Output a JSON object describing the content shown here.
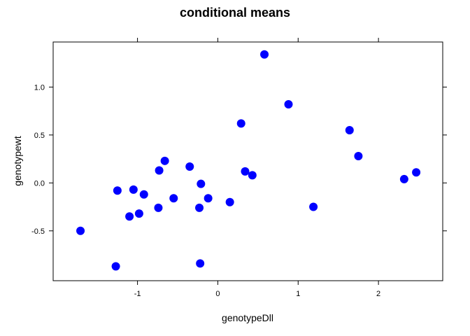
{
  "chart_data": {
    "type": "scatter",
    "title": "conditional means",
    "xlabel": "genotypeDll",
    "ylabel": "genotypewt",
    "xlim": [
      -2.05,
      2.8
    ],
    "ylim": [
      -1.02,
      1.47
    ],
    "x_ticks": [
      -1,
      0,
      1,
      2
    ],
    "x_tick_labels": [
      "-1",
      "0",
      "1",
      "2"
    ],
    "y_ticks": [
      -0.5,
      0.0,
      0.5,
      1.0
    ],
    "y_tick_labels": [
      "-0.5",
      "0.0",
      "0.5",
      "1.0"
    ],
    "grid": false,
    "point_color": "#0000ff",
    "series": [
      {
        "x": [
          0.58,
          0.88,
          0.29,
          1.64,
          1.75,
          2.47,
          2.32,
          -0.35,
          -0.66,
          -0.73,
          0.34,
          0.43,
          -1.25,
          -1.05,
          -0.92,
          -0.21,
          -0.55,
          -0.12,
          -0.74,
          -0.23,
          0.15,
          1.19,
          -1.1,
          -0.98,
          -1.71,
          -1.27,
          -0.22
        ],
        "y": [
          1.34,
          0.82,
          0.62,
          0.55,
          0.28,
          0.11,
          0.04,
          0.17,
          0.23,
          0.13,
          0.12,
          0.08,
          -0.08,
          -0.07,
          -0.12,
          -0.01,
          -0.16,
          -0.16,
          -0.26,
          -0.26,
          -0.2,
          -0.25,
          -0.35,
          -0.32,
          -0.5,
          -0.87,
          -0.84
        ]
      }
    ]
  }
}
